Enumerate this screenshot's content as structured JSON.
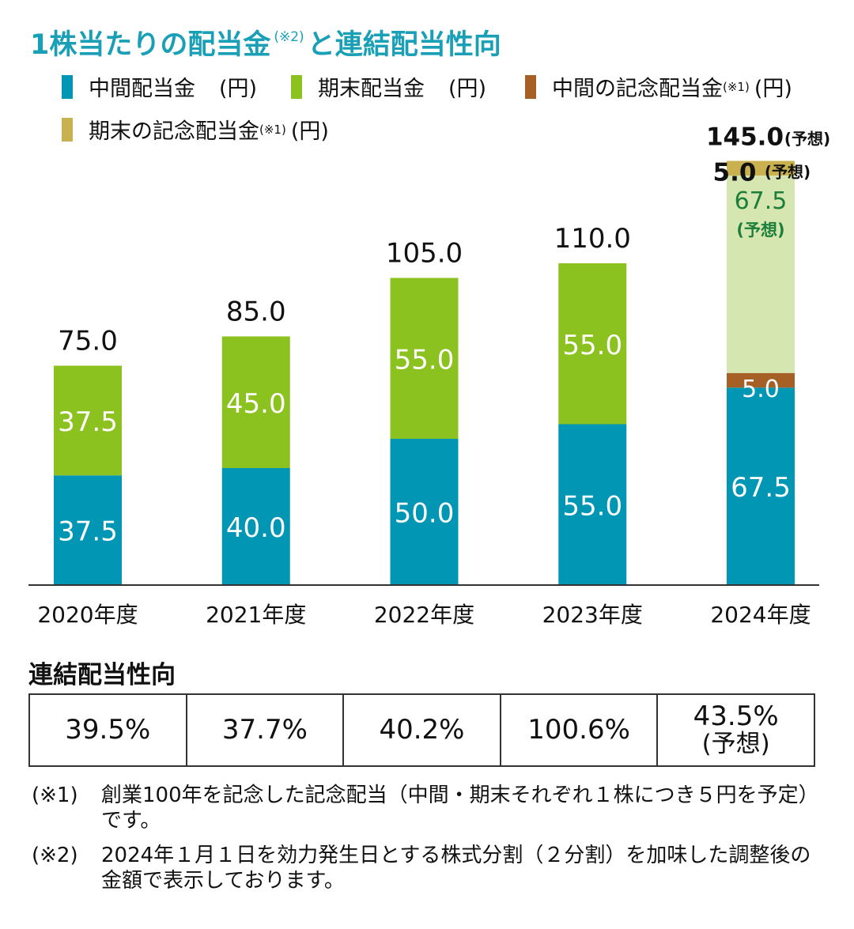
{
  "title": {
    "main": "1株当たりの配当金",
    "note_mark": "(※2)",
    "rest": "と連結配当性向"
  },
  "legend": [
    {
      "label": "中間配当金",
      "note": "",
      "unit": "(円)",
      "color": "#0096b4"
    },
    {
      "label": "期末配当金",
      "note": "",
      "unit": "(円)",
      "color": "#8cc21f"
    },
    {
      "label": "中間の記念配当金",
      "note": "(※1)",
      "unit": "(円)",
      "color": "#a65f25"
    },
    {
      "label": "期末の記念配当金",
      "note": "(※1)",
      "unit": "(円)",
      "color": "#c9b14f"
    }
  ],
  "chart_data": {
    "type": "bar",
    "stacked": true,
    "categories": [
      "2020年度",
      "2021年度",
      "2022年度",
      "2023年度",
      "2024年度"
    ],
    "series": [
      {
        "name": "中間配当金",
        "values": [
          37.5,
          40.0,
          50.0,
          55.0,
          67.5
        ],
        "labels": [
          "37.5",
          "40.0",
          "50.0",
          "55.0",
          "67.5"
        ],
        "color": "#0096b4"
      },
      {
        "name": "中間の記念配当金",
        "values": [
          0,
          0,
          0,
          0,
          5.0
        ],
        "labels": [
          "",
          "",
          "",
          "",
          "5.0"
        ],
        "color": "#a65f25"
      },
      {
        "name": "期末配当金",
        "values": [
          37.5,
          45.0,
          55.0,
          55.0,
          67.5
        ],
        "labels": [
          "37.5",
          "45.0",
          "55.0",
          "55.0",
          "67.5"
        ],
        "color": "#8cc21f",
        "forecast_color": "#d6e6b0"
      },
      {
        "name": "期末の記念配当金",
        "values": [
          0,
          0,
          0,
          0,
          5.0
        ],
        "labels": [
          "",
          "",
          "",
          "",
          "5.0"
        ],
        "color": "#c9b14f"
      }
    ],
    "totals": [
      "75.0",
      "85.0",
      "105.0",
      "110.0",
      "145.0"
    ],
    "forecast_index": 4,
    "forecast_label": "(予想)",
    "ylim": [
      0,
      150
    ]
  },
  "ratio": {
    "title": "連結配当性向",
    "values": [
      {
        "value": "39.5%",
        "sub": ""
      },
      {
        "value": "37.7%",
        "sub": ""
      },
      {
        "value": "40.2%",
        "sub": ""
      },
      {
        "value": "100.6%",
        "sub": ""
      },
      {
        "value": "43.5%",
        "sub": "(予想)"
      }
    ]
  },
  "notes": [
    {
      "mark": "(※1)",
      "text": "創業100年を記念した記念配当（中間・期末それぞれ１株につき５円を予定）です。"
    },
    {
      "mark": "(※2)",
      "text": "2024年１月１日を効力発生日とする株式分割（２分割）を加味した調整後の金額で表示しております。"
    }
  ]
}
